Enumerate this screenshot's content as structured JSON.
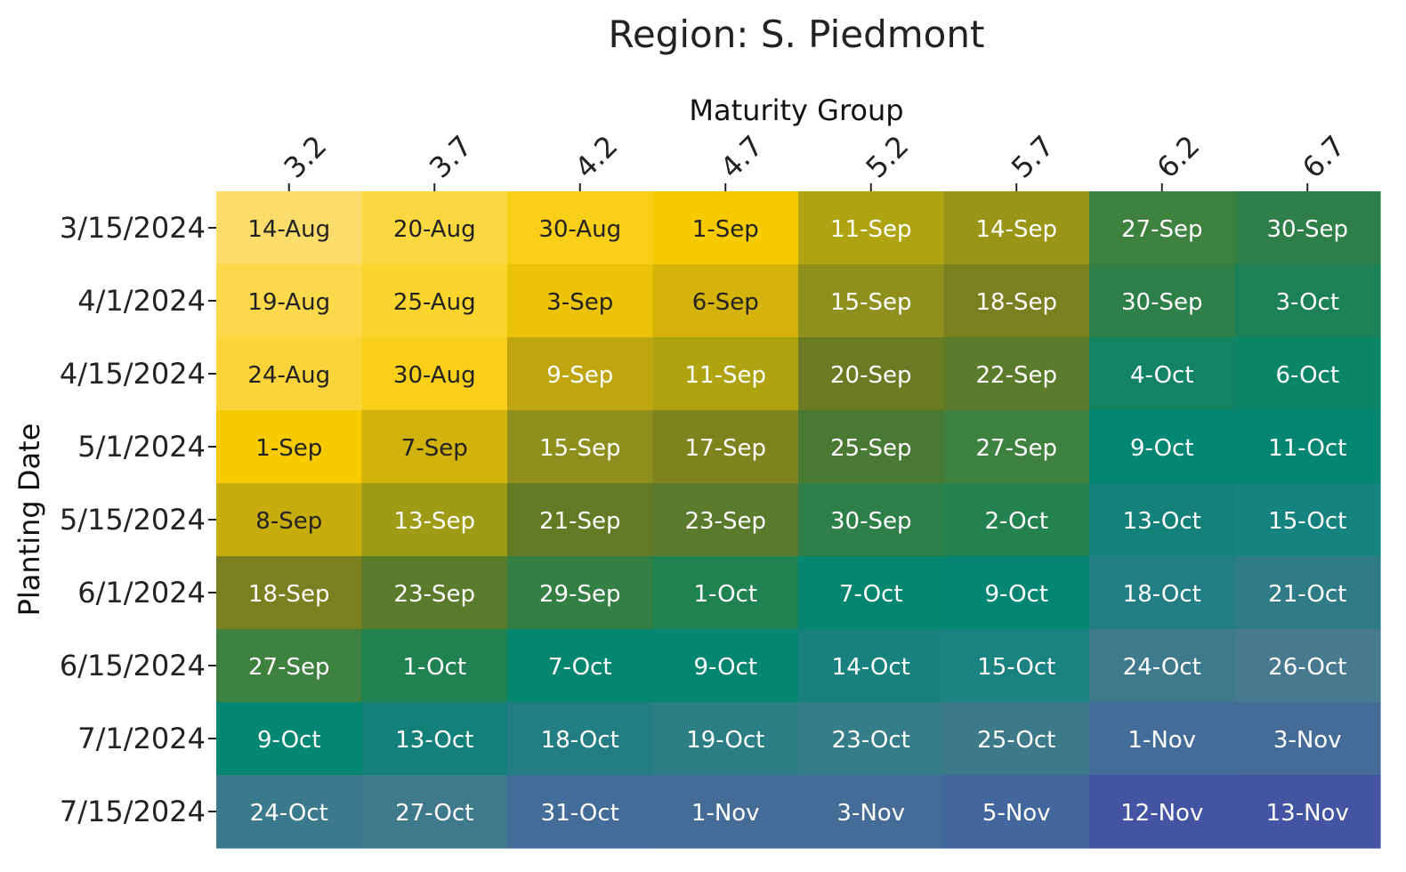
{
  "chart_data": {
    "type": "heatmap",
    "title": "Region: S. Piedmont",
    "xlabel": "Maturity Group",
    "ylabel": "Planting Date",
    "x_position": "top",
    "columns": [
      "3.2",
      "3.7",
      "4.2",
      "4.7",
      "5.2",
      "5.7",
      "6.2",
      "6.7"
    ],
    "rows": [
      "3/15/2024",
      "4/1/2024",
      "4/15/2024",
      "5/1/2024",
      "5/15/2024",
      "6/1/2024",
      "6/15/2024",
      "7/1/2024",
      "7/15/2024"
    ],
    "values": [
      [
        "14-Aug",
        "20-Aug",
        "30-Aug",
        "1-Sep",
        "11-Sep",
        "14-Sep",
        "27-Sep",
        "30-Sep"
      ],
      [
        "19-Aug",
        "25-Aug",
        "3-Sep",
        "6-Sep",
        "15-Sep",
        "18-Sep",
        "30-Sep",
        "3-Oct"
      ],
      [
        "24-Aug",
        "30-Aug",
        "9-Sep",
        "11-Sep",
        "20-Sep",
        "22-Sep",
        "4-Oct",
        "6-Oct"
      ],
      [
        "1-Sep",
        "7-Sep",
        "15-Sep",
        "17-Sep",
        "25-Sep",
        "27-Sep",
        "9-Oct",
        "11-Oct"
      ],
      [
        "8-Sep",
        "13-Sep",
        "21-Sep",
        "23-Sep",
        "30-Sep",
        "2-Oct",
        "13-Oct",
        "15-Oct"
      ],
      [
        "18-Sep",
        "23-Sep",
        "29-Sep",
        "1-Oct",
        "7-Oct",
        "9-Oct",
        "18-Oct",
        "21-Oct"
      ],
      [
        "27-Sep",
        "1-Oct",
        "7-Oct",
        "9-Oct",
        "14-Oct",
        "15-Oct",
        "24-Oct",
        "26-Oct"
      ],
      [
        "9-Oct",
        "13-Oct",
        "18-Oct",
        "19-Oct",
        "23-Oct",
        "25-Oct",
        "1-Nov",
        "3-Nov"
      ],
      [
        "24-Oct",
        "27-Oct",
        "31-Oct",
        "1-Nov",
        "3-Nov",
        "5-Nov",
        "12-Nov",
        "13-Nov"
      ]
    ],
    "colors": [
      [
        "#fcdc6b",
        "#fbd83f",
        "#f9cf1a",
        "#f8cb00",
        "#b0a312",
        "#9a9417",
        "#3f813f",
        "#2e8048"
      ],
      [
        "#fbd94a",
        "#fbd42d",
        "#ecc307",
        "#d6b30a",
        "#8f8f1e",
        "#78801f",
        "#2e8048",
        "#1c8157"
      ],
      [
        "#fbd43b",
        "#f9cf1a",
        "#bfa50f",
        "#b0a312",
        "#6a7b24",
        "#5b7c2b",
        "#128462",
        "#0c8566"
      ],
      [
        "#f8cb00",
        "#d2b20d",
        "#8f8f1e",
        "#7f831e",
        "#497a34",
        "#3f813f",
        "#048674",
        "#048672"
      ],
      [
        "#c7ac0c",
        "#a09b16",
        "#647b25",
        "#5a7b2c",
        "#2e8048",
        "#24824f",
        "#13817a",
        "#158380"
      ],
      [
        "#78801f",
        "#5a7b2c",
        "#347f43",
        "#208152",
        "#058670",
        "#048674",
        "#237e84",
        "#2f7c86"
      ],
      [
        "#3f813f",
        "#208152",
        "#058670",
        "#058670",
        "#19817e",
        "#1a8280",
        "#3f7a8c",
        "#487a8f"
      ],
      [
        "#048674",
        "#13817a",
        "#237e84",
        "#2a7e84",
        "#347d89",
        "#3c7a8a",
        "#436c98",
        "#456b97"
      ],
      [
        "#3a7a8c",
        "#3f7a8c",
        "#436c98",
        "#456b97",
        "#456b97",
        "#43669c",
        "#4254a2",
        "#4254a2"
      ]
    ],
    "text_colors": [
      [
        "#222222",
        "#222222",
        "#222222",
        "#222222",
        "#ffffff",
        "#ffffff",
        "#ffffff",
        "#ffffff"
      ],
      [
        "#222222",
        "#222222",
        "#222222",
        "#222222",
        "#ffffff",
        "#ffffff",
        "#ffffff",
        "#ffffff"
      ],
      [
        "#222222",
        "#222222",
        "#ffffff",
        "#ffffff",
        "#ffffff",
        "#ffffff",
        "#ffffff",
        "#ffffff"
      ],
      [
        "#222222",
        "#222222",
        "#ffffff",
        "#ffffff",
        "#ffffff",
        "#ffffff",
        "#ffffff",
        "#ffffff"
      ],
      [
        "#222222",
        "#ffffff",
        "#ffffff",
        "#ffffff",
        "#ffffff",
        "#ffffff",
        "#ffffff",
        "#ffffff"
      ],
      [
        "#ffffff",
        "#ffffff",
        "#ffffff",
        "#ffffff",
        "#ffffff",
        "#ffffff",
        "#ffffff",
        "#ffffff"
      ],
      [
        "#ffffff",
        "#ffffff",
        "#ffffff",
        "#ffffff",
        "#ffffff",
        "#ffffff",
        "#ffffff",
        "#ffffff"
      ],
      [
        "#ffffff",
        "#ffffff",
        "#ffffff",
        "#ffffff",
        "#ffffff",
        "#ffffff",
        "#ffffff",
        "#ffffff"
      ],
      [
        "#ffffff",
        "#ffffff",
        "#ffffff",
        "#ffffff",
        "#ffffff",
        "#ffffff",
        "#ffffff",
        "#ffffff"
      ]
    ],
    "legend": "none",
    "grid": false
  }
}
